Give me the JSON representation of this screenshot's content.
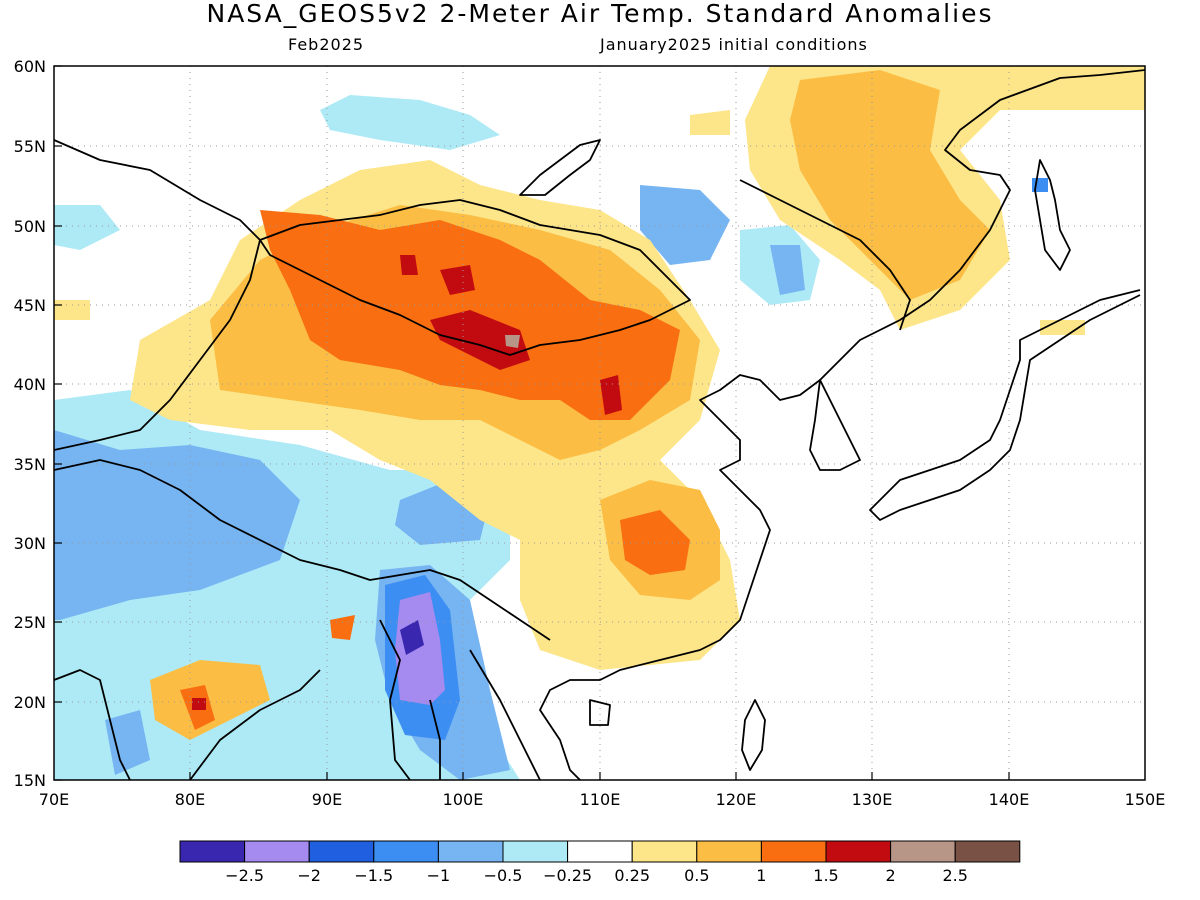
{
  "title": "NASA_GEOS5v2 2-Meter Air Temp. Standard Anomalies",
  "subtitle_left": "Feb2025",
  "subtitle_right": "January2025 initial conditions",
  "map": {
    "lat_labels": [
      "60N",
      "55N",
      "50N",
      "45N",
      "40N",
      "35N",
      "30N",
      "25N",
      "20N",
      "15N"
    ],
    "lon_labels": [
      "70E",
      "80E",
      "90E",
      "100E",
      "110E",
      "120E",
      "130E",
      "140E",
      "150E"
    ]
  },
  "colorbar": {
    "colors": [
      "#3a27b0",
      "#a58bf0",
      "#1f5fe0",
      "#3d8ef2",
      "#76b4f2",
      "#aeeaf6",
      "#ffffff",
      "#fde58a",
      "#fbbd43",
      "#f86e10",
      "#c20b10",
      "#b79688",
      "#7a5245"
    ],
    "labels": [
      "−2.5",
      "−2",
      "−1.5",
      "−1",
      "−0.5",
      "−0.25",
      "0.25",
      "0.5",
      "1",
      "1.5",
      "2",
      "2.5"
    ]
  },
  "colors": {
    "warm_light": "#fde58a",
    "warm_mid": "#fbbd43",
    "warm_strong": "#f86e10",
    "warm_extreme": "#c20b10",
    "cool_light": "#aeeaf6",
    "cool_mid": "#76b4f2",
    "cool_strong": "#3d8ef2",
    "cool_extreme": "#a58bf0"
  }
}
